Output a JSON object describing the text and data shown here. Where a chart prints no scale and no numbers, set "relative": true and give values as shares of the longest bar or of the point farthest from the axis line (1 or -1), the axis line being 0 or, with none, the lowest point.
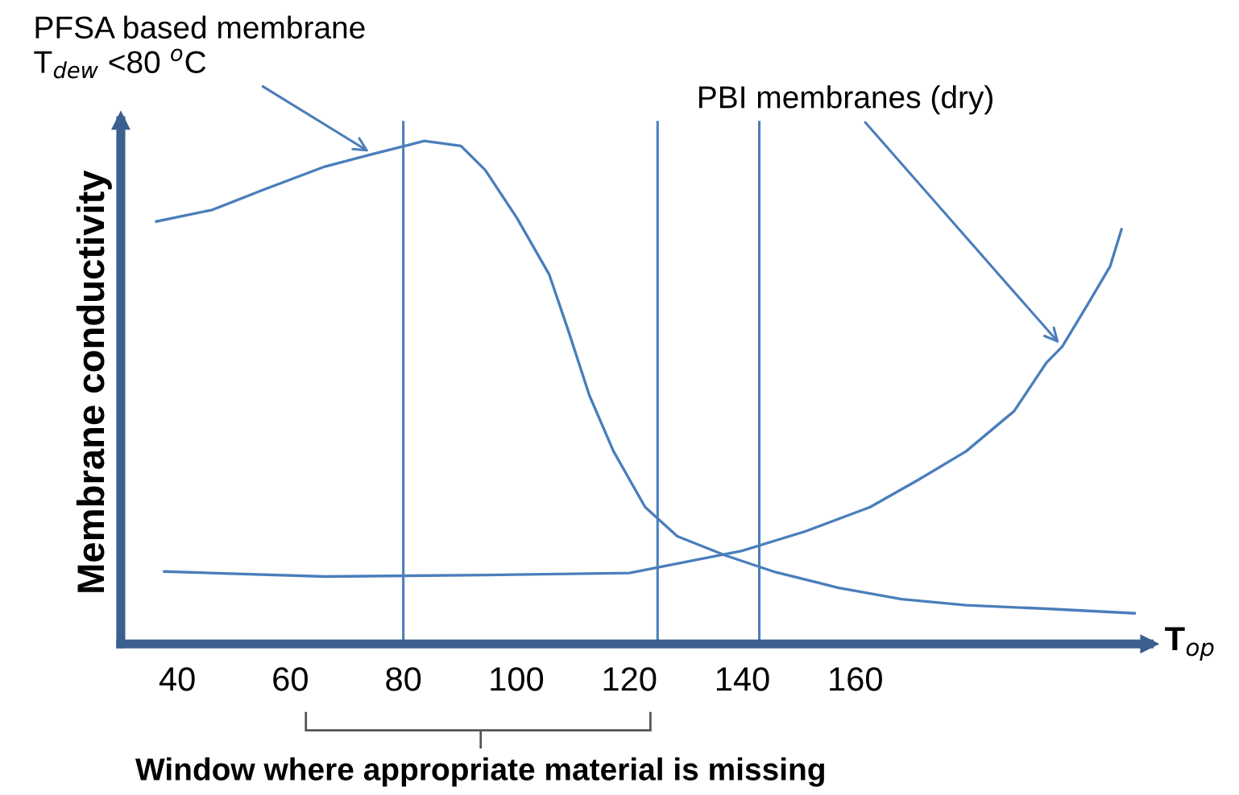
{
  "chart_data": {
    "type": "line",
    "relative": true,
    "xlabel": "T$_{op}$",
    "ylabel": "Membrane conductivity",
    "xlim": [
      30,
      212
    ],
    "xticks": [
      40,
      60,
      80,
      100,
      120,
      140,
      160
    ],
    "grid": false,
    "marker": "none",
    "line_style": "solid",
    "series": [
      {
        "color": "#4a7ebb",
        "x": [
          36.3,
          46.2,
          54.8,
          66.1,
          74.6,
          83.7,
          90.2,
          94.5,
          100.1,
          105.8,
          109.2,
          112.9,
          117.2,
          122.8,
          128.5,
          137.0,
          145.5,
          156.9,
          168.2,
          179.6,
          193.8,
          209.4
        ],
        "values": [
          0.84,
          0.863,
          0.901,
          0.949,
          0.974,
          1.0,
          0.99,
          0.942,
          0.847,
          0.735,
          0.623,
          0.495,
          0.383,
          0.272,
          0.214,
          0.176,
          0.144,
          0.112,
          0.089,
          0.077,
          0.07,
          0.061
        ]
      },
      {
        "color": "#4a7ebb",
        "x": [
          37.7,
          66.1,
          94.5,
          120.0,
          128.5,
          139.9,
          151.2,
          162.6,
          171.1,
          179.6,
          188.1,
          193.8,
          196.6,
          200.9,
          205.1,
          207.1
        ],
        "values": [
          0.144,
          0.134,
          0.137,
          0.141,
          0.16,
          0.185,
          0.224,
          0.272,
          0.326,
          0.383,
          0.463,
          0.559,
          0.591,
          0.671,
          0.751,
          0.824
        ]
      }
    ],
    "ref_lines": [
      {
        "axis": "x",
        "value": 80,
        "color": "#4a7ebb"
      },
      {
        "axis": "x",
        "value": 125,
        "color": "#4a7ebb"
      },
      {
        "axis": "x",
        "value": 143,
        "color": "#4a7ebb"
      }
    ],
    "annotations": [
      {
        "text": "PFSA based membrane\nT$_{dew}$ <80 $^{o}$C",
        "x": 74.6,
        "y": 0.974
      },
      {
        "text": "PBI membranes (dry)",
        "x": 196.6,
        "y": 0.591
      },
      "Window where appropriate material is missing"
    ]
  }
}
